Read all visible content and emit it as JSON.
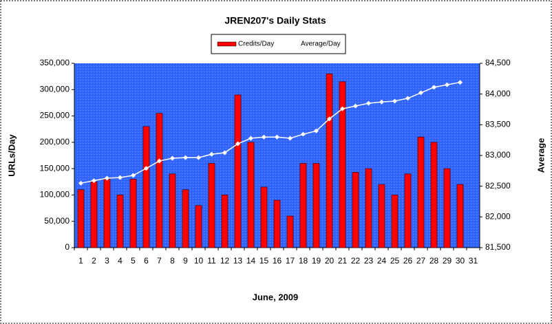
{
  "chart_data": {
    "type": "bar",
    "title": "JREN207's Daily Stats",
    "x_label": "June, 2009",
    "y_label": "URLs/Day",
    "y2_label": "Average",
    "categories": [
      "1",
      "2",
      "3",
      "4",
      "5",
      "6",
      "7",
      "8",
      "9",
      "10",
      "11",
      "12",
      "13",
      "14",
      "15",
      "16",
      "17",
      "18",
      "19",
      "20",
      "21",
      "22",
      "23",
      "24",
      "25",
      "26",
      "27",
      "28",
      "29",
      "30",
      "31"
    ],
    "series": [
      {
        "name": "Credits/Day",
        "type": "bar",
        "color": "#ff0000",
        "values": [
          110000,
          125000,
          130000,
          100000,
          130000,
          230000,
          255000,
          140000,
          110000,
          80000,
          160000,
          100000,
          290000,
          200000,
          115000,
          90000,
          60000,
          160000,
          160000,
          330000,
          315000,
          143000,
          150000,
          120000,
          100000,
          140000,
          210000,
          200000,
          150000,
          120000,
          null
        ]
      },
      {
        "name": "Average/Day",
        "type": "line",
        "axis": "y2",
        "color": "#ffffff",
        "values": [
          82550,
          82590,
          82630,
          82640,
          82675,
          82790,
          82910,
          82955,
          82965,
          82965,
          83020,
          83045,
          83190,
          83280,
          83300,
          83300,
          83280,
          83345,
          83400,
          83595,
          83760,
          83805,
          83850,
          83870,
          83885,
          83930,
          84020,
          84110,
          84150,
          84190,
          null
        ]
      }
    ],
    "ylim": [
      0,
      350000
    ],
    "yticks": [
      0,
      {
        "value": 50000,
        "label": "50,000"
      },
      {
        "value": 100000,
        "label": "100,000"
      },
      {
        "value": 150000,
        "label": "150,000"
      },
      {
        "value": 200000,
        "label": "200,000"
      },
      {
        "value": 250000,
        "label": "250,000"
      },
      {
        "value": 300000,
        "label": "300,000"
      },
      {
        "value": 350000,
        "label": "350,000"
      }
    ],
    "y2lim": [
      81500,
      84500
    ],
    "y2ticks": [
      {
        "value": 81500,
        "label": "81,500"
      },
      {
        "value": 82000,
        "label": "82,000"
      },
      {
        "value": 82500,
        "label": "82,500"
      },
      {
        "value": 83000,
        "label": "83,000"
      },
      {
        "value": 83500,
        "label": "83,500"
      },
      {
        "value": 84000,
        "label": "84,000"
      },
      {
        "value": 84500,
        "label": "84,500"
      }
    ],
    "legend": "top"
  }
}
